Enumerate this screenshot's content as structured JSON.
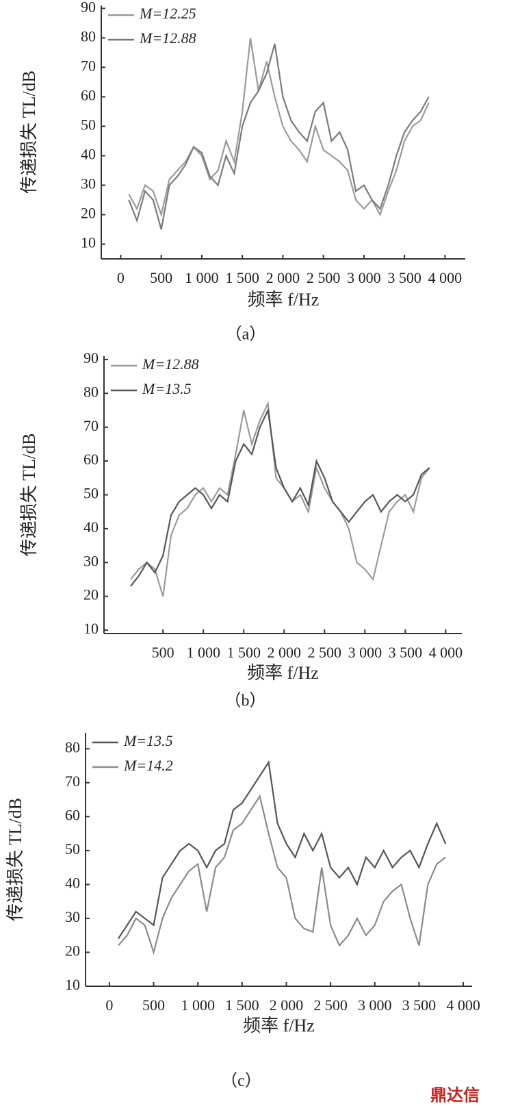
{
  "chart_data": [
    {
      "type": "line",
      "caption": "（a）",
      "xlabel": "频率 f/Hz",
      "ylabel": "传递损失 TL/dB",
      "x": [
        100,
        200,
        300,
        400,
        500,
        600,
        700,
        800,
        900,
        1000,
        1100,
        1200,
        1300,
        1400,
        1500,
        1600,
        1700,
        1800,
        1900,
        2000,
        2100,
        2200,
        2300,
        2400,
        2500,
        2600,
        2700,
        2800,
        2900,
        3000,
        3100,
        3200,
        3300,
        3400,
        3500,
        3600,
        3700,
        3800
      ],
      "series": [
        {
          "name": "M=12.25",
          "color": "#9a9a9a",
          "values": [
            27,
            22,
            30,
            28,
            20,
            32,
            35,
            38,
            43,
            40,
            32,
            35,
            45,
            38,
            55,
            80,
            62,
            72,
            60,
            50,
            45,
            42,
            38,
            50,
            42,
            40,
            38,
            35,
            25,
            22,
            25,
            20,
            28,
            35,
            45,
            50,
            52,
            58
          ]
        },
        {
          "name": "M=12.88",
          "color": "#7a7a7a",
          "values": [
            25,
            18,
            28,
            25,
            15,
            30,
            33,
            37,
            43,
            41,
            33,
            30,
            40,
            34,
            50,
            58,
            62,
            68,
            78,
            60,
            52,
            48,
            45,
            55,
            58,
            45,
            48,
            42,
            28,
            30,
            25,
            22,
            30,
            40,
            48,
            52,
            55,
            60
          ]
        }
      ],
      "xlim": [
        -240,
        4250
      ],
      "ylim": [
        5,
        91
      ],
      "xticks": [
        0,
        500,
        {
          "value": 1000,
          "label": "1 000"
        },
        {
          "value": 1500,
          "label": "1 500"
        },
        {
          "value": 2000,
          "label": "2 000"
        },
        {
          "value": 2500,
          "label": "2 500"
        },
        {
          "value": 3000,
          "label": "3 000"
        },
        {
          "value": 3500,
          "label": "3 500"
        },
        {
          "value": 4000,
          "label": "4 000"
        }
      ],
      "yticks": [
        10,
        20,
        30,
        40,
        50,
        60,
        70,
        80,
        90
      ]
    },
    {
      "type": "line",
      "caption": "（b）",
      "xlabel": "频率 f/Hz",
      "ylabel": "传递损失 TL/dB",
      "x": [
        100,
        200,
        300,
        400,
        500,
        600,
        700,
        800,
        900,
        1000,
        1100,
        1200,
        1300,
        1400,
        1500,
        1600,
        1700,
        1800,
        1900,
        2000,
        2100,
        2200,
        2300,
        2400,
        2500,
        2600,
        2700,
        2800,
        2900,
        3000,
        3100,
        3200,
        3300,
        3400,
        3500,
        3600,
        3700,
        3800
      ],
      "series": [
        {
          "name": "M=12.88",
          "color": "#9a9a9a",
          "values": [
            25,
            28,
            30,
            28,
            20,
            38,
            44,
            46,
            50,
            52,
            48,
            52,
            50,
            62,
            75,
            65,
            72,
            77,
            55,
            52,
            48,
            50,
            45,
            58,
            52,
            48,
            45,
            40,
            30,
            28,
            25,
            35,
            45,
            48,
            50,
            45,
            55,
            58
          ]
        },
        {
          "name": "M=13.5",
          "color": "#555555",
          "values": [
            23,
            26,
            30,
            27,
            32,
            44,
            48,
            50,
            52,
            50,
            46,
            50,
            48,
            60,
            65,
            62,
            70,
            75,
            58,
            52,
            48,
            52,
            47,
            60,
            55,
            48,
            45,
            42,
            45,
            48,
            50,
            45,
            48,
            50,
            48,
            50,
            56,
            58
          ]
        }
      ],
      "xlim": [
        -230,
        4200
      ],
      "ylim": [
        9,
        91
      ],
      "xticks": [
        500,
        {
          "value": 1000,
          "label": "1 000"
        },
        {
          "value": 1500,
          "label": "1 500"
        },
        {
          "value": 2000,
          "label": "2 000"
        },
        {
          "value": 2500,
          "label": "2 500"
        },
        {
          "value": 3000,
          "label": "3 000"
        },
        {
          "value": 3500,
          "label": "3 500"
        },
        {
          "value": 4000,
          "label": "4 000"
        }
      ],
      "yticks": [
        10,
        20,
        30,
        40,
        50,
        60,
        70,
        80,
        90
      ]
    },
    {
      "type": "line",
      "caption": "（c）",
      "xlabel": "频率 f/Hz",
      "ylabel": "传递损失 TL/dB",
      "x": [
        100,
        200,
        300,
        400,
        500,
        600,
        700,
        800,
        900,
        1000,
        1100,
        1200,
        1300,
        1400,
        1500,
        1600,
        1700,
        1800,
        1900,
        2000,
        2100,
        2200,
        2300,
        2400,
        2500,
        2600,
        2700,
        2800,
        2900,
        3000,
        3100,
        3200,
        3300,
        3400,
        3500,
        3600,
        3700,
        3800
      ],
      "series": [
        {
          "name": "M=13.5",
          "color": "#555555",
          "values": [
            24,
            28,
            32,
            30,
            28,
            42,
            46,
            50,
            52,
            50,
            45,
            50,
            52,
            62,
            64,
            68,
            72,
            76,
            58,
            52,
            48,
            55,
            50,
            55,
            45,
            42,
            45,
            40,
            48,
            45,
            50,
            45,
            48,
            50,
            45,
            52,
            58,
            52
          ]
        },
        {
          "name": "M=14.2",
          "color": "#8a8a8a",
          "values": [
            22,
            25,
            30,
            28,
            20,
            30,
            36,
            40,
            44,
            46,
            32,
            45,
            48,
            56,
            58,
            62,
            66,
            55,
            45,
            42,
            30,
            27,
            26,
            45,
            28,
            22,
            25,
            30,
            25,
            28,
            35,
            38,
            40,
            30,
            22,
            40,
            46,
            48
          ]
        }
      ],
      "xlim": [
        -270,
        4100
      ],
      "ylim": [
        10,
        84.7
      ],
      "xticks": [
        0,
        500,
        {
          "value": 1000,
          "label": "1 000"
        },
        {
          "value": 1500,
          "label": "1 500"
        },
        {
          "value": 2000,
          "label": "2 000"
        },
        {
          "value": 2500,
          "label": "2 500"
        },
        {
          "value": 3000,
          "label": "3 000"
        },
        {
          "value": 3500,
          "label": "3 500"
        },
        {
          "value": 4000,
          "label": "4 000"
        }
      ],
      "yticks": [
        10,
        20,
        30,
        40,
        50,
        60,
        70,
        80
      ]
    }
  ],
  "watermark": "鼎达信"
}
